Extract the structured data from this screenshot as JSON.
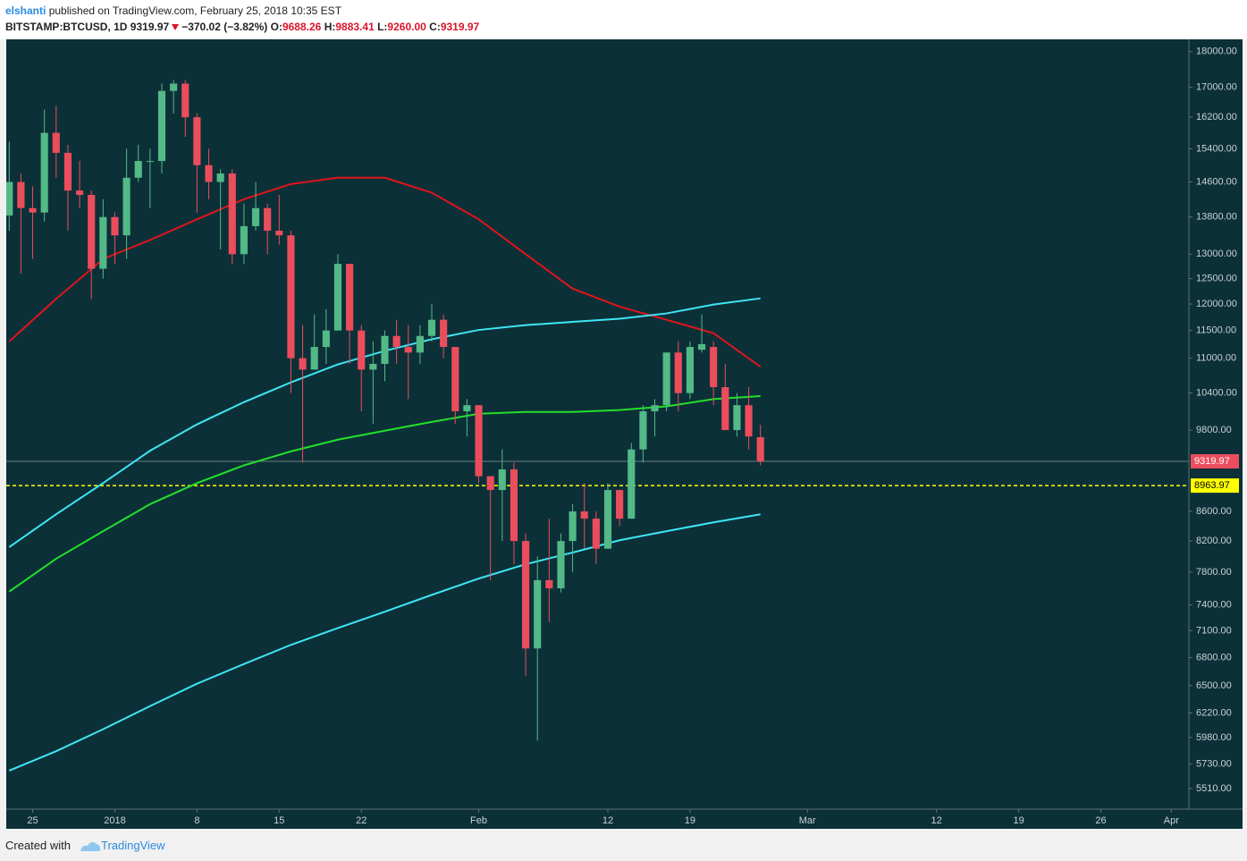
{
  "header": {
    "user": "elshanti",
    "published": "published on TradingView.com, February 25, 2018 10:35 EST",
    "symbol": "BITSTAMP:BTCUSD, 1D",
    "last": "9319.97",
    "change": "−370.02 (−3.82%)",
    "ohlc": [
      {
        "label": "O:",
        "value": "9688.26"
      },
      {
        "label": "H:",
        "value": "9883.41"
      },
      {
        "label": "L:",
        "value": "9260.00"
      },
      {
        "label": "C:",
        "value": "9319.97"
      }
    ]
  },
  "footer": {
    "created": "Created with",
    "brand": "TradingView"
  },
  "chart_data": {
    "type": "candlestick",
    "log": true,
    "up_color": "#53b987",
    "down_color": "#eb4d5c",
    "x": [
      0,
      1,
      2,
      3,
      4,
      5,
      6,
      7,
      8,
      9,
      10,
      11,
      12,
      13,
      14,
      15,
      16,
      17,
      18,
      19,
      20,
      21,
      22,
      23,
      24,
      25,
      26,
      27,
      28,
      29,
      30,
      31,
      32,
      33,
      34,
      35,
      36,
      37,
      38,
      39,
      40,
      41,
      42,
      43,
      44,
      45,
      46,
      47,
      48,
      49,
      50,
      51,
      52,
      53,
      54,
      55,
      56,
      57,
      58,
      59,
      60,
      61,
      62,
      63,
      64
    ],
    "open": [
      13833,
      14600,
      14000,
      13900,
      15800,
      15300,
      14400,
      14300,
      12700,
      13800,
      13400,
      14700,
      15100,
      15100,
      16900,
      17100,
      16200,
      15000,
      14600,
      14800,
      13000,
      13600,
      14000,
      13500,
      13400,
      11000,
      10800,
      11200,
      11500,
      12800,
      11500,
      10800,
      10900,
      11400,
      11200,
      11100,
      11400,
      11700,
      11200,
      10100,
      10200,
      9100,
      8900,
      9200,
      8200,
      6900,
      7700,
      7600,
      8200,
      8600,
      8500,
      8100,
      8900,
      8500,
      9500,
      10100,
      10200,
      11100,
      10400,
      11150,
      11200,
      10500,
      9800,
      10200,
      9688.26
    ],
    "high": [
      15575,
      14800,
      14500,
      16400,
      16500,
      15500,
      15100,
      14400,
      14200,
      13900,
      15400,
      15500,
      15400,
      17100,
      17200,
      17200,
      16300,
      15400,
      14900,
      14900,
      14100,
      14600,
      14100,
      14300,
      13500,
      11600,
      11800,
      11900,
      13000,
      12800,
      11600,
      11300,
      11500,
      11700,
      11600,
      11600,
      12000,
      11800,
      11200,
      10300,
      10200,
      9100,
      9500,
      9300,
      8300,
      8000,
      8500,
      8300,
      8700,
      9000,
      8600,
      9000,
      8900,
      9600,
      10200,
      10300,
      11100,
      11300,
      11300,
      11800,
      11300,
      10900,
      10400,
      10500,
      9883.41
    ],
    "low": [
      13500,
      12600,
      12900,
      13700,
      14700,
      13500,
      14000,
      12100,
      12500,
      12800,
      12900,
      14600,
      14000,
      14800,
      16300,
      15700,
      13900,
      14200,
      13100,
      12800,
      12800,
      13500,
      13000,
      13200,
      10400,
      9300,
      10800,
      10900,
      11500,
      10900,
      10100,
      9900,
      10600,
      10900,
      10300,
      10900,
      11300,
      11000,
      9900,
      9700,
      9000,
      7700,
      8200,
      7900,
      6600,
      5950,
      7200,
      7550,
      7800,
      8100,
      7900,
      8100,
      8400,
      8500,
      9300,
      9700,
      10100,
      10100,
      10300,
      11100,
      10200,
      9800,
      9700,
      9500,
      9260
    ],
    "close": [
      14600,
      14000,
      13900,
      15800,
      15300,
      14400,
      14300,
      12700,
      13800,
      13400,
      14700,
      15100,
      15100,
      16900,
      17100,
      16200,
      15000,
      14600,
      14800,
      13000,
      13600,
      14000,
      13500,
      13400,
      11000,
      10800,
      11200,
      11500,
      12800,
      11500,
      10800,
      10900,
      11400,
      11200,
      11100,
      11400,
      11700,
      11200,
      10100,
      10200,
      9100,
      8900,
      9200,
      8200,
      6900,
      7700,
      7600,
      8200,
      8600,
      8500,
      8100,
      8900,
      8500,
      9500,
      10100,
      10200,
      11100,
      10400,
      11200,
      11250,
      10500,
      9800,
      10200,
      9700,
      9319.97
    ],
    "lines": [
      {
        "color": "#e0141c",
        "x": [
          0,
          4,
          8,
          12,
          16,
          20,
          24,
          28,
          32,
          36,
          40,
          44,
          48,
          52,
          56,
          60,
          64
        ],
        "values": [
          11300,
          12100,
          12900,
          13300,
          13750,
          14200,
          14550,
          14700,
          14700,
          14350,
          13750,
          13000,
          12300,
          11950,
          11700,
          11450,
          10850
        ]
      },
      {
        "color": "#3ee6f5",
        "x": [
          0,
          4,
          8,
          12,
          16,
          20,
          24,
          28,
          32,
          36,
          40,
          44,
          48,
          52,
          56,
          60,
          64
        ],
        "values": [
          8120,
          8560,
          9000,
          9480,
          9890,
          10250,
          10580,
          10890,
          11130,
          11340,
          11510,
          11600,
          11660,
          11720,
          11820,
          11990,
          12110
        ]
      },
      {
        "color": "#22e02a",
        "x": [
          0,
          4,
          8,
          12,
          16,
          20,
          24,
          28,
          32,
          36,
          40,
          44,
          48,
          52,
          56,
          60,
          64
        ],
        "values": [
          7560,
          7970,
          8330,
          8700,
          9000,
          9260,
          9470,
          9650,
          9790,
          9930,
          10060,
          10090,
          10090,
          10120,
          10180,
          10300,
          10350
        ]
      },
      {
        "color": "#3ee6f5",
        "x": [
          0,
          4,
          8,
          12,
          16,
          20,
          24,
          28,
          32,
          36,
          40,
          44,
          48,
          52,
          56,
          60,
          64
        ],
        "values": [
          5670,
          5850,
          6060,
          6290,
          6520,
          6730,
          6940,
          7130,
          7320,
          7520,
          7720,
          7900,
          8050,
          8210,
          8330,
          8450,
          8560
        ]
      }
    ],
    "price_line": 9319.97,
    "level": 8963.97,
    "level_color": "#ffff00",
    "xlim": [
      -0.25,
      100.5
    ],
    "ylim": [
      5330,
      18360
    ],
    "xticks": [
      {
        "value": 2,
        "label": "25"
      },
      {
        "value": 9,
        "label": "2018"
      },
      {
        "value": 16,
        "label": "8"
      },
      {
        "value": 23,
        "label": "15"
      },
      {
        "value": 30,
        "label": "22"
      },
      {
        "value": 40,
        "label": "Feb"
      },
      {
        "value": 51,
        "label": "12"
      },
      {
        "value": 58,
        "label": "19"
      },
      {
        "value": 68,
        "label": "Mar"
      },
      {
        "value": 79,
        "label": "12"
      },
      {
        "value": 86,
        "label": "19"
      },
      {
        "value": 93,
        "label": "26"
      },
      {
        "value": 99,
        "label": "Apr"
      }
    ],
    "yticks": [
      {
        "value": 18000,
        "label": "18000.00"
      },
      {
        "value": 17000,
        "label": "17000.00"
      },
      {
        "value": 16200,
        "label": "16200.00"
      },
      {
        "value": 15400,
        "label": "15400.00"
      },
      {
        "value": 14600,
        "label": "14600.00"
      },
      {
        "value": 13800,
        "label": "13800.00"
      },
      {
        "value": 13000,
        "label": "13000.00"
      },
      {
        "value": 12500,
        "label": "12500.00"
      },
      {
        "value": 12000,
        "label": "12000.00"
      },
      {
        "value": 11500,
        "label": "11500.00"
      },
      {
        "value": 11000,
        "label": "11000.00"
      },
      {
        "value": 10400,
        "label": "10400.00"
      },
      {
        "value": 9800,
        "label": "9800.00"
      },
      {
        "value": 8600,
        "label": "8600.00"
      },
      {
        "value": 8200,
        "label": "8200.00"
      },
      {
        "value": 7800,
        "label": "7800.00"
      },
      {
        "value": 7400,
        "label": "7400.00"
      },
      {
        "value": 7100,
        "label": "7100.00"
      },
      {
        "value": 6800,
        "label": "6800.00"
      },
      {
        "value": 6500,
        "label": "6500.00"
      },
      {
        "value": 6220,
        "label": "6220.00"
      },
      {
        "value": 5980,
        "label": "5980.00"
      },
      {
        "value": 5730,
        "label": "5730.00"
      },
      {
        "value": 5510,
        "label": "5510.00"
      }
    ]
  }
}
